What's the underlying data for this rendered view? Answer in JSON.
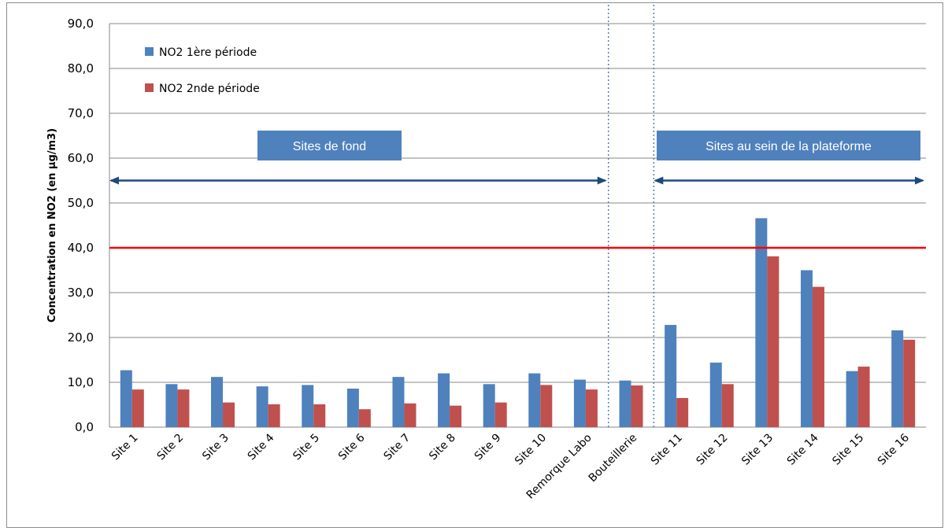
{
  "chart_data": {
    "type": "bar",
    "title": "",
    "xlabel": "",
    "ylabel": "Concentration en NO2 (en µg/m3)",
    "ylim": [
      0,
      90
    ],
    "yticks": [
      0,
      10,
      20,
      30,
      40,
      50,
      60,
      70,
      80,
      90
    ],
    "ytick_labels": [
      "0,0",
      "10,0",
      "20,0",
      "30,0",
      "40,0",
      "50,0",
      "60,0",
      "70,0",
      "80,0",
      "90,0"
    ],
    "grid": true,
    "legend_position": "top-left",
    "categories": [
      "Site 1",
      "Site 2",
      "Site 3",
      "Site 4",
      "Site 5",
      "Site 6",
      "Site 7",
      "Site 8",
      "Site 9",
      "Site 10",
      "Remorque Labo",
      "Bouteillerie",
      "Site 11",
      "Site 12",
      "Site 13",
      "Site 14",
      "Site 15",
      "Site 16"
    ],
    "series": [
      {
        "name": "NO2 1ère période",
        "color": "#4f81bd",
        "values": [
          12.7,
          9.6,
          11.2,
          9.1,
          9.4,
          8.6,
          11.2,
          12.0,
          9.6,
          12.0,
          10.6,
          10.4,
          22.8,
          14.4,
          46.6,
          35.0,
          12.5,
          21.6
        ]
      },
      {
        "name": "NO2 2nde période",
        "color": "#c0504d",
        "values": [
          8.4,
          8.4,
          5.5,
          5.1,
          5.1,
          4.0,
          5.3,
          4.8,
          5.5,
          9.4,
          8.4,
          9.3,
          6.5,
          9.6,
          38.1,
          31.3,
          13.5,
          19.5
        ]
      }
    ],
    "threshold": {
      "value": 40,
      "color": "#ff0000"
    },
    "separators": {
      "after_categories": [
        "Remorque Labo",
        "Bouteillerie"
      ],
      "color": "#4f81bd"
    },
    "annotations": [
      {
        "text": "Sites de fond",
        "from": "Site 1",
        "to": "Remorque Labo"
      },
      {
        "text": "Sites au sein de la plateforme",
        "from": "Site 11",
        "to": "Site 16"
      }
    ],
    "annotation_box_color": "#4f81bd",
    "annotation_text_color": "#ffffff",
    "arrow_color": "#1f497d"
  }
}
